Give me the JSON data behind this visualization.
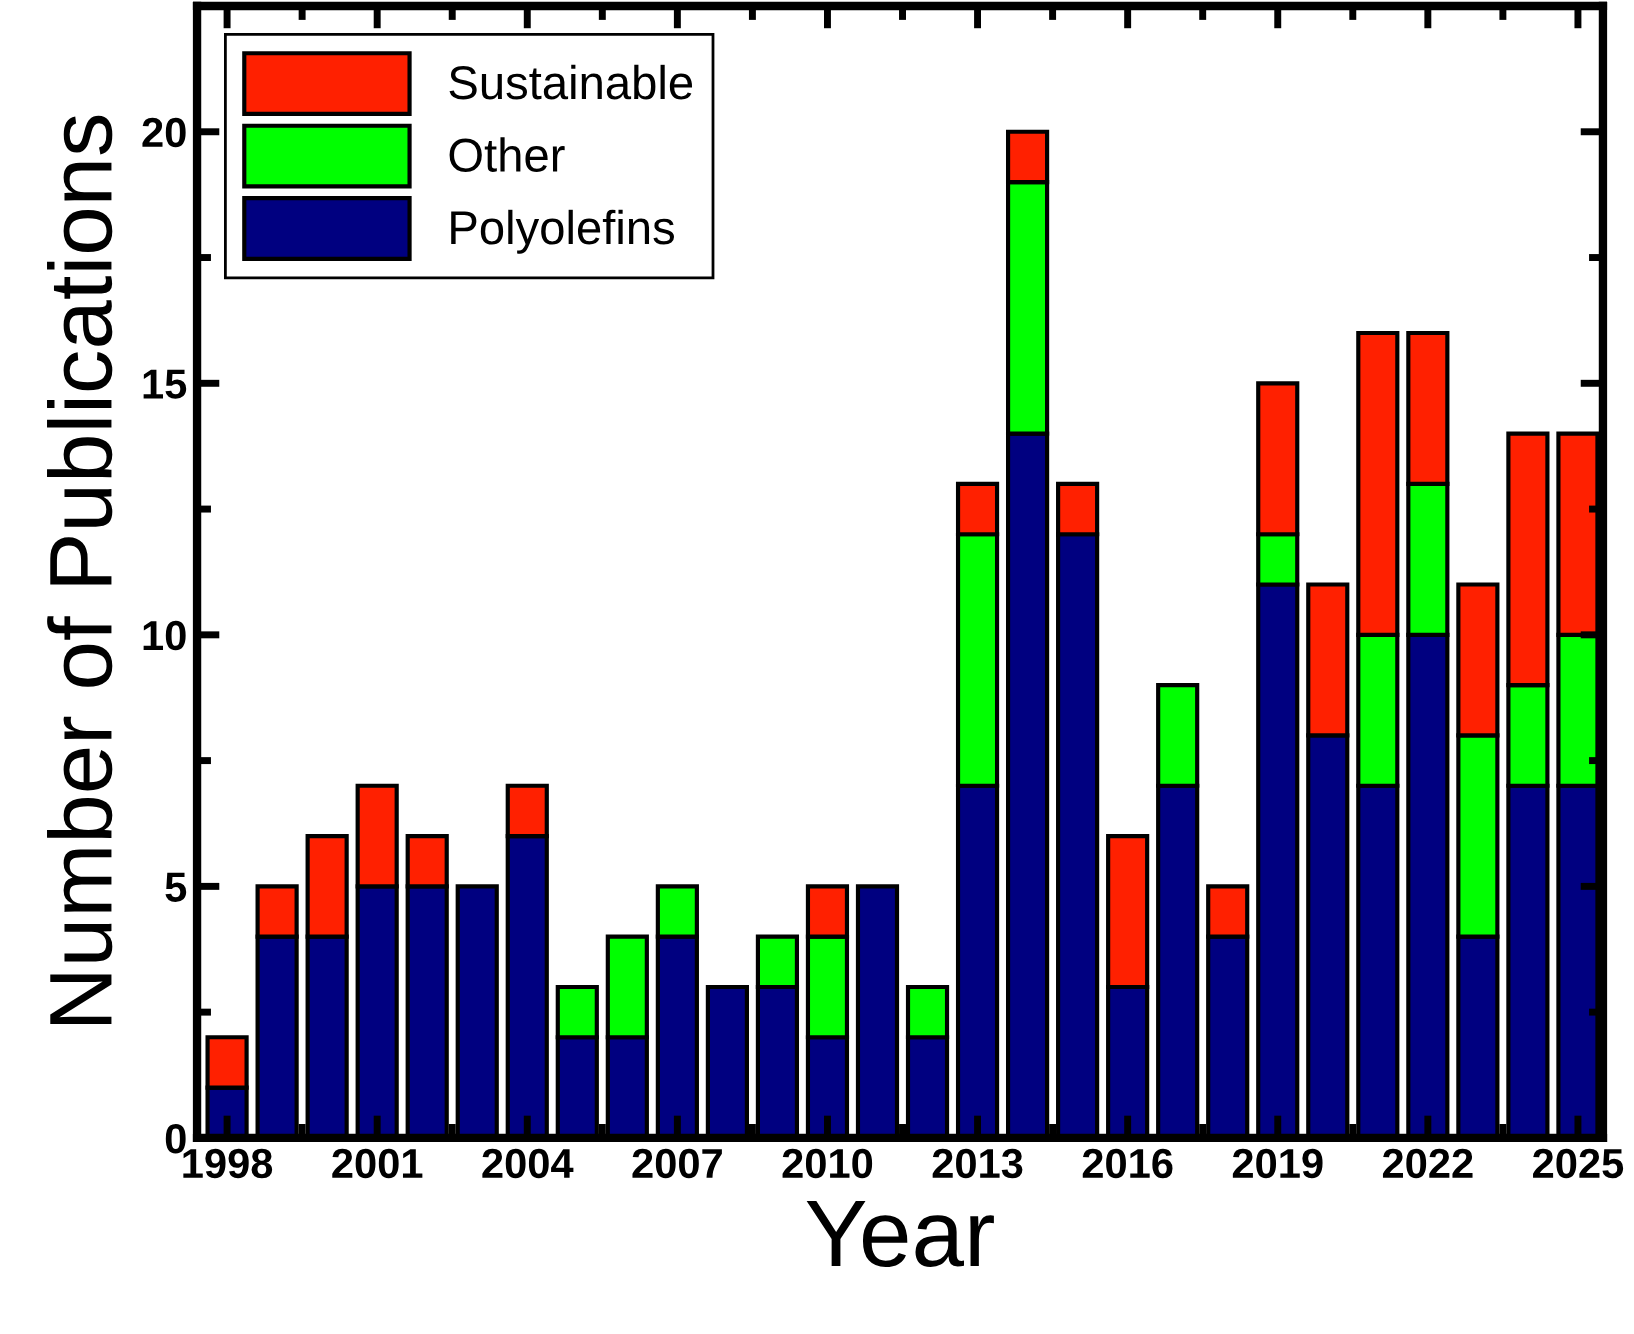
{
  "chart_data": {
    "type": "bar",
    "stacked": true,
    "xlabel": "Year",
    "ylabel": "Number of Publications",
    "x": [
      1998,
      1999,
      2000,
      2001,
      2002,
      2003,
      2004,
      2005,
      2006,
      2007,
      2008,
      2009,
      2010,
      2011,
      2012,
      2013,
      2014,
      2015,
      2016,
      2017,
      2018,
      2019,
      2020,
      2021,
      2022,
      2023,
      2024,
      2025
    ],
    "series": [
      {
        "name": "Polyolefins",
        "color": "#000080",
        "values": [
          1,
          4,
          4,
          5,
          5,
          5,
          6,
          2,
          2,
          4,
          3,
          3,
          2,
          5,
          2,
          7,
          14,
          12,
          3,
          7,
          4,
          11,
          8,
          7,
          10,
          4,
          7,
          7
        ]
      },
      {
        "name": "Other",
        "color": "#00ff00",
        "values": [
          0,
          0,
          0,
          0,
          0,
          0,
          0,
          1,
          2,
          1,
          0,
          1,
          2,
          0,
          1,
          5,
          5,
          0,
          0,
          2,
          0,
          1,
          0,
          3,
          3,
          4,
          2,
          3
        ]
      },
      {
        "name": "Sustainable",
        "color": "#ff2000",
        "values": [
          1,
          1,
          2,
          2,
          1,
          0,
          1,
          0,
          0,
          0,
          0,
          0,
          1,
          0,
          0,
          1,
          1,
          1,
          3,
          0,
          1,
          3,
          3,
          6,
          3,
          3,
          5,
          4
        ]
      }
    ],
    "xlim": [
      1997.4,
      2025.5
    ],
    "xticks": [
      1998,
      2001,
      2004,
      2007,
      2010,
      2013,
      2016,
      2019,
      2022,
      2025
    ],
    "ylim": [
      0,
      22.5
    ],
    "yticks": [
      0,
      5,
      10,
      15,
      20
    ],
    "legend": "top left",
    "grid": false
  }
}
